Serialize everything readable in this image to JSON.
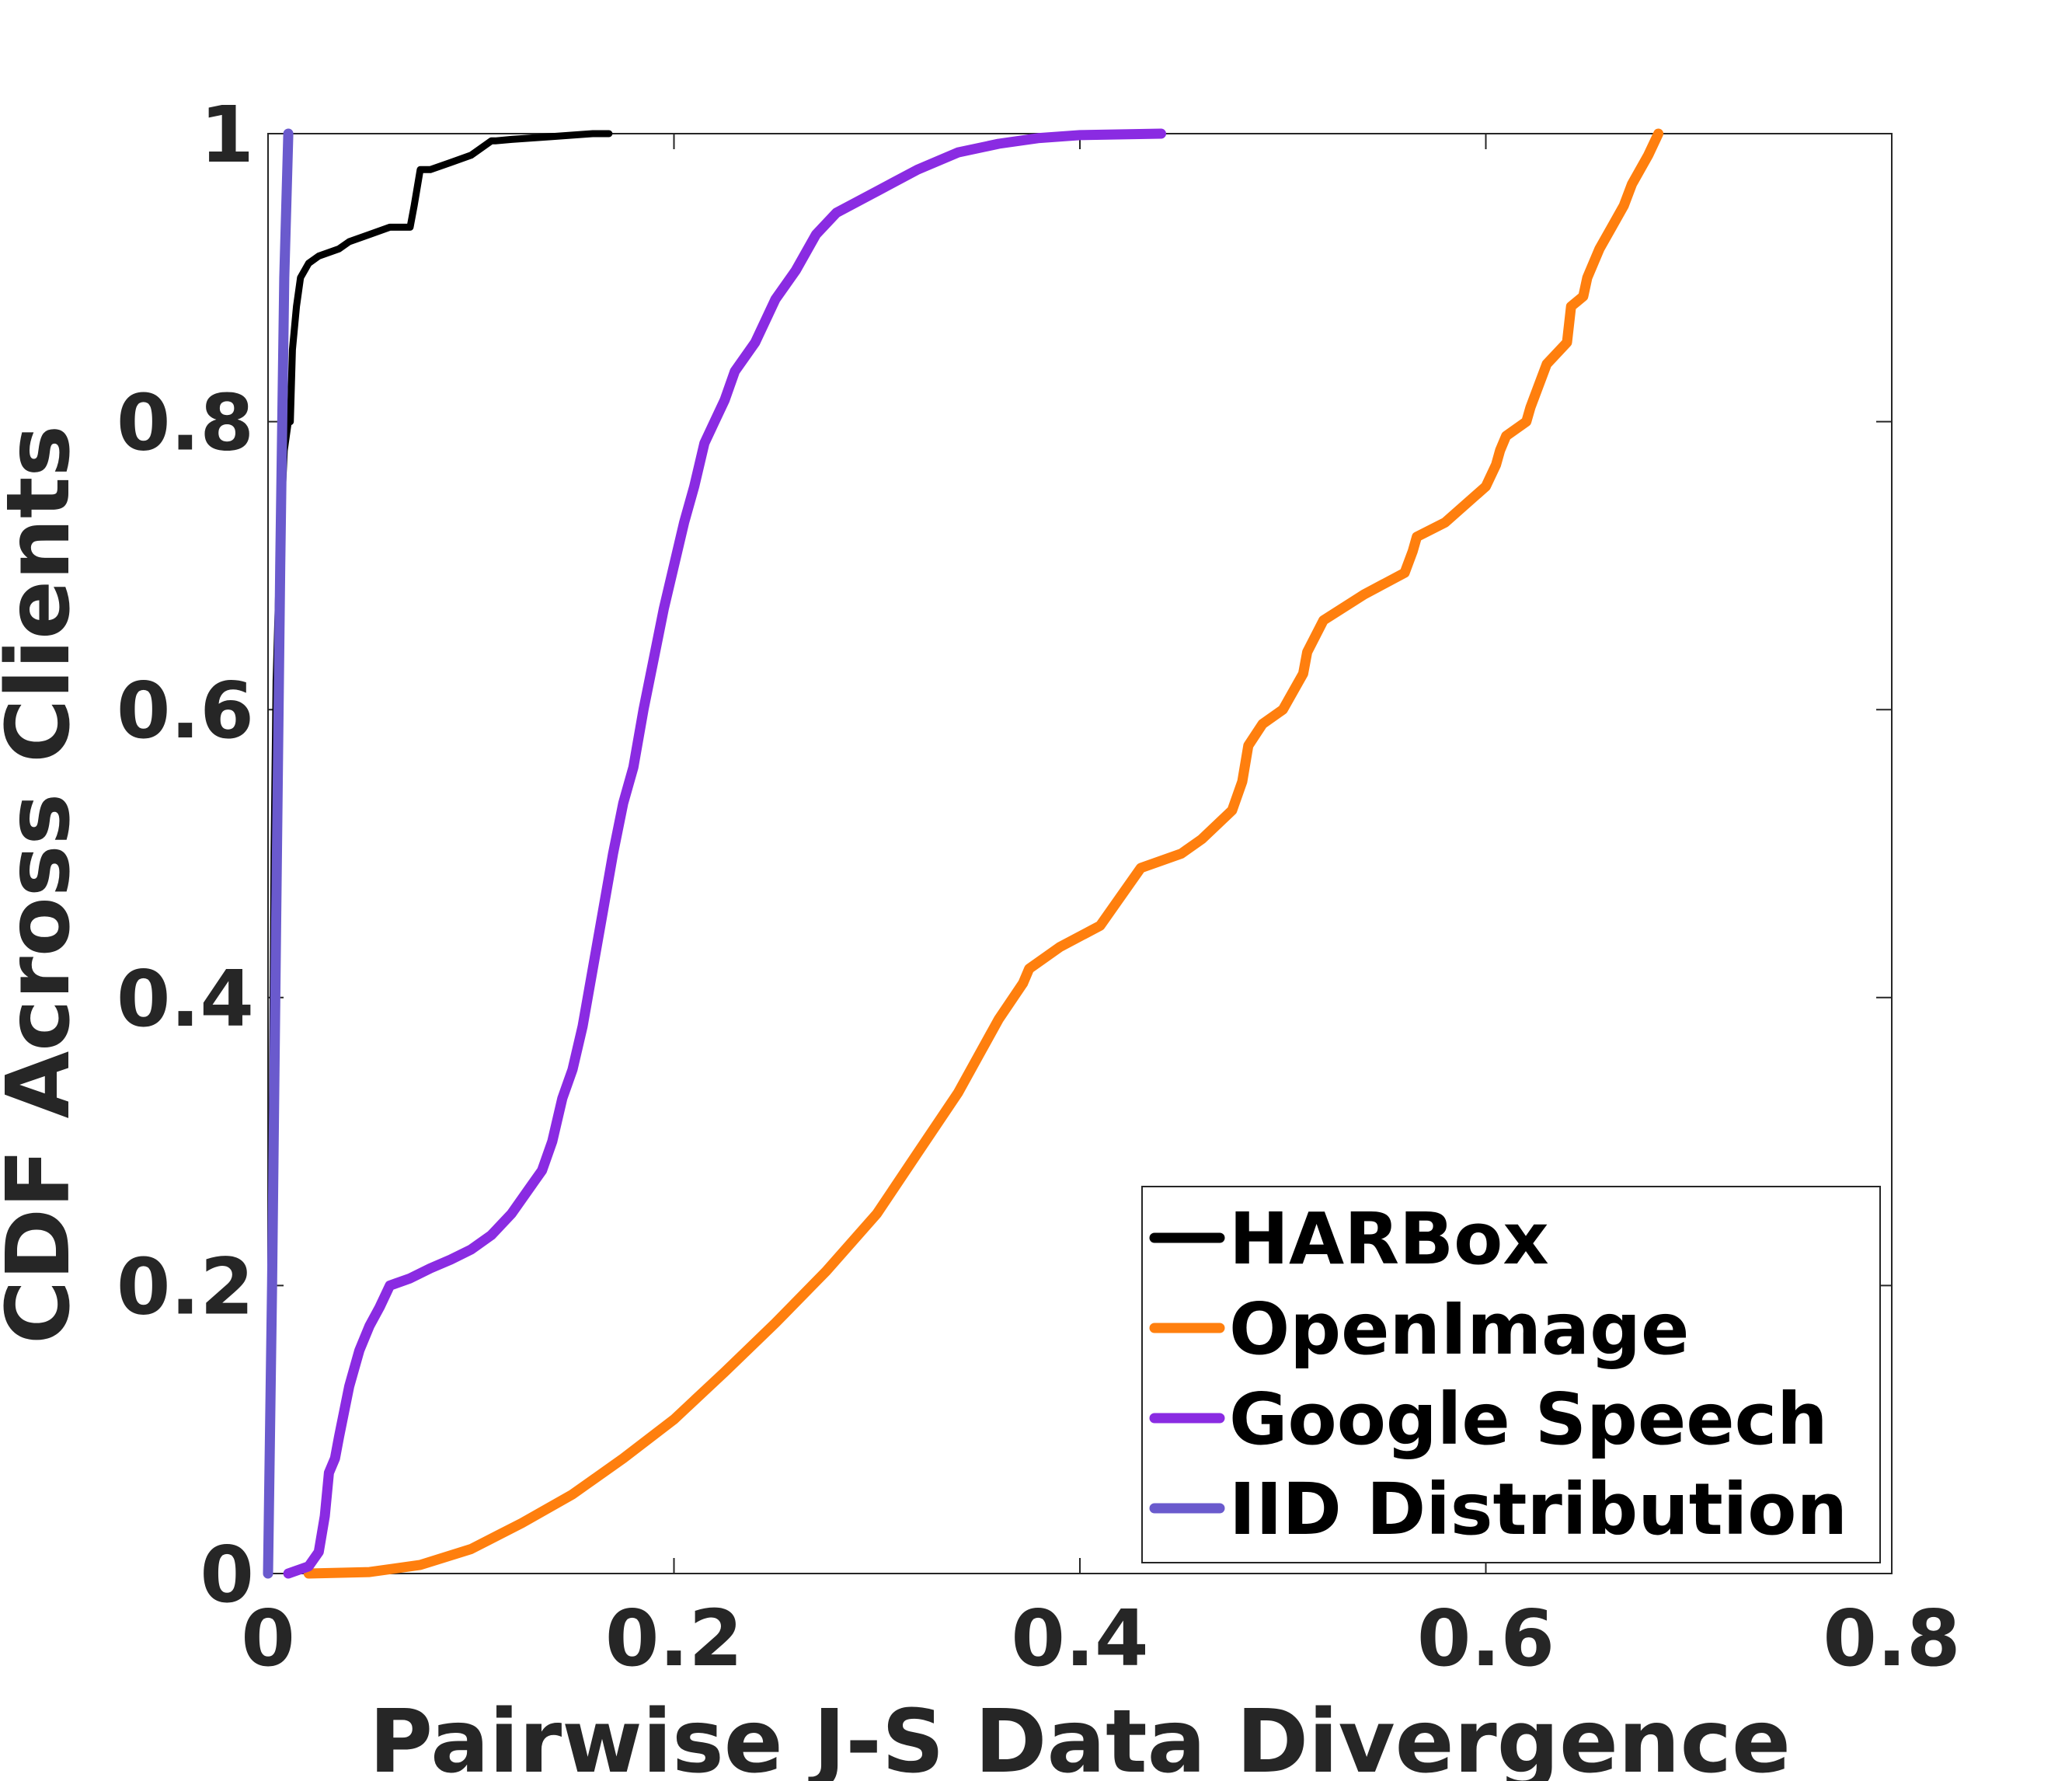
{
  "chart_data": {
    "type": "line",
    "title": "",
    "xlabel": "Pairwise J-S Data Divergence",
    "ylabel": "CDF Across Clients",
    "xlim": [
      0,
      0.8
    ],
    "ylim": [
      0,
      1
    ],
    "xticks": [
      0,
      0.2,
      0.4,
      0.6,
      0.8
    ],
    "xtick_labels": [
      "0",
      "0.2",
      "0.4",
      "0.6",
      "0.8"
    ],
    "yticks": [
      0,
      0.2,
      0.4,
      0.6,
      0.8,
      1
    ],
    "ytick_labels": [
      "0",
      "0.2",
      "0.4",
      "0.6",
      "0.8",
      "1"
    ],
    "grid": false,
    "legend": "bottom-right",
    "series": [
      {
        "name": "HARBox",
        "color": "#000000",
        "x": [
          0.0,
          0.001,
          0.002,
          0.003,
          0.004,
          0.006,
          0.008,
          0.01,
          0.011,
          0.012,
          0.014,
          0.016,
          0.02,
          0.025,
          0.035,
          0.04,
          0.05,
          0.06,
          0.07,
          0.072,
          0.075,
          0.08,
          0.09,
          0.1,
          0.11,
          0.112,
          0.12,
          0.14,
          0.16,
          0.168
        ],
        "y": [
          0.0,
          0.1,
          0.3,
          0.5,
          0.62,
          0.72,
          0.78,
          0.8,
          0.8,
          0.85,
          0.88,
          0.9,
          0.91,
          0.915,
          0.92,
          0.925,
          0.93,
          0.935,
          0.935,
          0.95,
          0.975,
          0.975,
          0.98,
          0.985,
          0.995,
          0.995,
          0.996,
          0.998,
          1.0,
          1.0
        ]
      },
      {
        "name": "OpenImage",
        "color": "#ff7f0e",
        "x": [
          0.02,
          0.05,
          0.075,
          0.1,
          0.125,
          0.15,
          0.175,
          0.2,
          0.225,
          0.25,
          0.275,
          0.3,
          0.32,
          0.34,
          0.36,
          0.372,
          0.375,
          0.39,
          0.41,
          0.43,
          0.45,
          0.46,
          0.475,
          0.48,
          0.483,
          0.49,
          0.5,
          0.51,
          0.512,
          0.52,
          0.54,
          0.56,
          0.564,
          0.566,
          0.58,
          0.6,
          0.605,
          0.607,
          0.61,
          0.62,
          0.622,
          0.63,
          0.64,
          0.642,
          0.648,
          0.65,
          0.656,
          0.662,
          0.668,
          0.672,
          0.68,
          0.685
        ],
        "y": [
          0.0,
          0.001,
          0.006,
          0.017,
          0.035,
          0.055,
          0.08,
          0.107,
          0.14,
          0.174,
          0.21,
          0.25,
          0.292,
          0.334,
          0.385,
          0.41,
          0.42,
          0.435,
          0.45,
          0.49,
          0.5,
          0.51,
          0.53,
          0.55,
          0.575,
          0.59,
          0.6,
          0.625,
          0.64,
          0.662,
          0.68,
          0.695,
          0.71,
          0.72,
          0.73,
          0.755,
          0.77,
          0.78,
          0.79,
          0.8,
          0.81,
          0.84,
          0.855,
          0.88,
          0.887,
          0.9,
          0.92,
          0.935,
          0.95,
          0.965,
          0.985,
          1.0
        ]
      },
      {
        "name": "Google Speech",
        "color": "#8a2be2",
        "x": [
          0.01,
          0.02,
          0.025,
          0.028,
          0.03,
          0.033,
          0.035,
          0.04,
          0.045,
          0.05,
          0.055,
          0.06,
          0.07,
          0.08,
          0.09,
          0.1,
          0.11,
          0.12,
          0.13,
          0.135,
          0.14,
          0.145,
          0.15,
          0.155,
          0.16,
          0.165,
          0.17,
          0.175,
          0.18,
          0.185,
          0.19,
          0.195,
          0.2,
          0.205,
          0.21,
          0.215,
          0.22,
          0.225,
          0.23,
          0.24,
          0.25,
          0.26,
          0.27,
          0.28,
          0.3,
          0.32,
          0.34,
          0.36,
          0.38,
          0.4,
          0.44
        ],
        "y": [
          0.0,
          0.005,
          0.015,
          0.04,
          0.07,
          0.08,
          0.095,
          0.13,
          0.155,
          0.172,
          0.185,
          0.2,
          0.205,
          0.212,
          0.218,
          0.225,
          0.235,
          0.25,
          0.27,
          0.28,
          0.3,
          0.33,
          0.35,
          0.38,
          0.42,
          0.46,
          0.5,
          0.535,
          0.56,
          0.6,
          0.635,
          0.67,
          0.7,
          0.73,
          0.755,
          0.785,
          0.8,
          0.815,
          0.835,
          0.855,
          0.885,
          0.905,
          0.93,
          0.945,
          0.96,
          0.975,
          0.987,
          0.993,
          0.997,
          0.999,
          1.0
        ]
      },
      {
        "name": "IID Distribution",
        "color": "#6a5acd",
        "x": [
          0.0,
          0.002,
          0.004,
          0.006,
          0.008,
          0.01
        ],
        "y": [
          0.0,
          0.2,
          0.45,
          0.7,
          0.9,
          1.0
        ]
      }
    ]
  }
}
